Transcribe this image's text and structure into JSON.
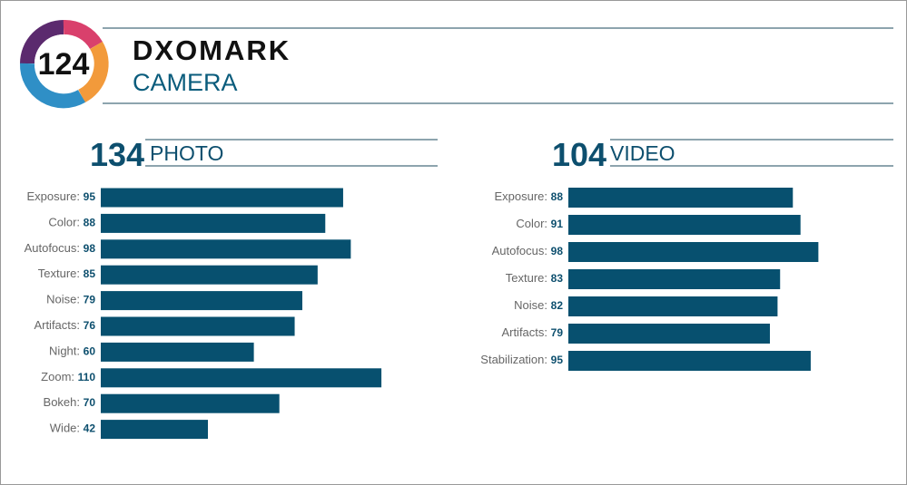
{
  "header": {
    "score": 124,
    "brand": "DXOMARK",
    "product": "CAMERA"
  },
  "chart_data": [
    {
      "type": "bar",
      "score": 134,
      "title": "PHOTO",
      "color": "#07506f",
      "categories": [
        "Exposure:",
        "Color:",
        "Autofocus:",
        "Texture:",
        "Noise:",
        "Artifacts:",
        "Night:",
        "Zoom:",
        "Bokeh:",
        "Wide:"
      ],
      "values": [
        95,
        88,
        98,
        85,
        79,
        76,
        60,
        110,
        70,
        42
      ]
    },
    {
      "type": "bar",
      "score": 104,
      "title": "VIDEO",
      "color": "#07506f",
      "categories": [
        "Exposure:",
        "Color:",
        "Autofocus:",
        "Texture:",
        "Noise:",
        "Artifacts:",
        "Stabilization:"
      ],
      "values": [
        88,
        91,
        98,
        83,
        82,
        79,
        95
      ]
    }
  ]
}
